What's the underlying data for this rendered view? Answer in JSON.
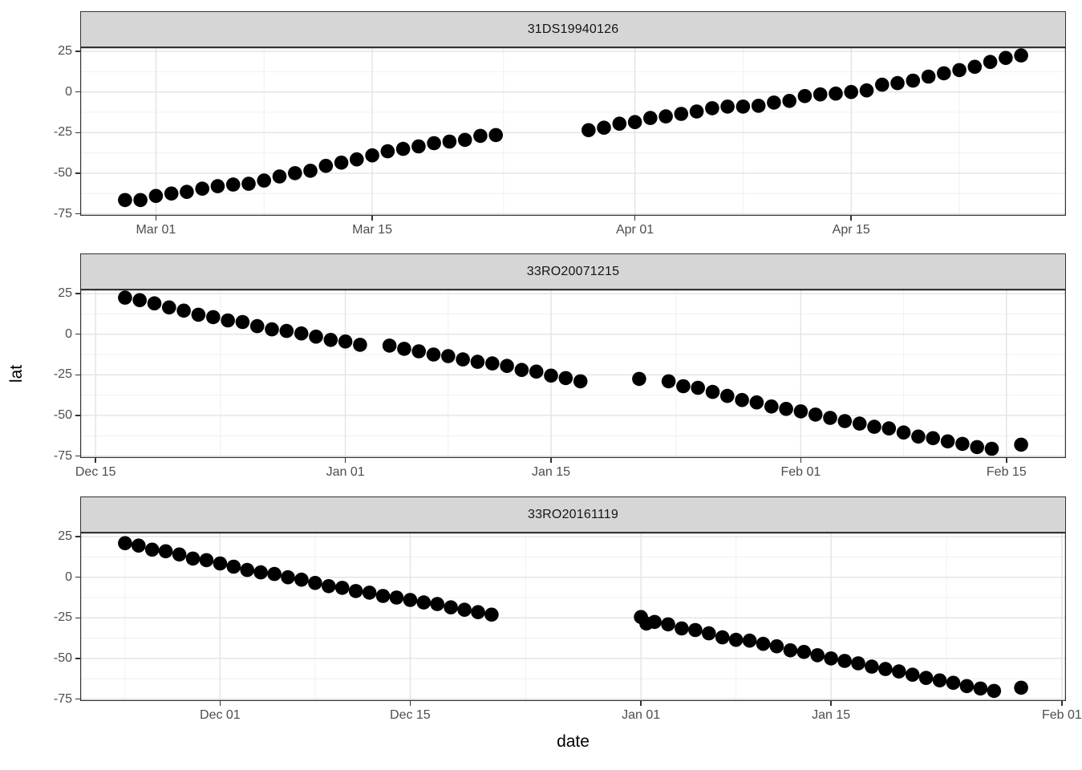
{
  "chart_data": {
    "type": "scatter",
    "xlabel": "date",
    "ylabel": "lat",
    "grid": "major-and-minor",
    "legend": "none",
    "point_color": "#000000",
    "strip_fill": "#d6d6d6",
    "ylim": [
      -76.2,
      27.5
    ],
    "y_ticks": [
      {
        "label": "25",
        "value": 25
      },
      {
        "label": "0",
        "value": 0
      },
      {
        "label": "-25",
        "value": -25
      },
      {
        "label": "-50",
        "value": -50
      },
      {
        "label": "-75",
        "value": -75
      }
    ],
    "panels": [
      {
        "title": "31DS19940126",
        "day0_date": "Feb 27",
        "x_domain_days": [
          -2.9,
          60.9
        ],
        "x_ticks": [
          {
            "label": "Mar 01",
            "day": 2
          },
          {
            "label": "Mar 15",
            "day": 16
          },
          {
            "label": "Apr 01",
            "day": 33
          },
          {
            "label": "Apr 15",
            "day": 47
          }
        ],
        "points_day_lat": [
          [
            0,
            -66.5
          ],
          [
            1,
            -66.5
          ],
          [
            2,
            -64
          ],
          [
            3,
            -62.5
          ],
          [
            4,
            -61.5
          ],
          [
            5,
            -59.5
          ],
          [
            6,
            -58
          ],
          [
            7,
            -57
          ],
          [
            8,
            -56.5
          ],
          [
            9,
            -54.5
          ],
          [
            10,
            -52
          ],
          [
            11,
            -50
          ],
          [
            12,
            -48.5
          ],
          [
            13,
            -45.5
          ],
          [
            14,
            -43.5
          ],
          [
            15,
            -41.5
          ],
          [
            16,
            -39
          ],
          [
            17,
            -36.5
          ],
          [
            18,
            -35
          ],
          [
            19,
            -33.5
          ],
          [
            20,
            -31.5
          ],
          [
            21,
            -30.5
          ],
          [
            22,
            -29.5
          ],
          [
            23,
            -27
          ],
          [
            24,
            -26.5
          ],
          [
            30,
            -23.5
          ],
          [
            31,
            -22
          ],
          [
            32,
            -19.5
          ],
          [
            33,
            -18.5
          ],
          [
            34,
            -16
          ],
          [
            35,
            -15
          ],
          [
            36,
            -13.5
          ],
          [
            37,
            -12
          ],
          [
            38,
            -10
          ],
          [
            39,
            -9
          ],
          [
            40,
            -9
          ],
          [
            41,
            -8.5
          ],
          [
            42,
            -6.5
          ],
          [
            43,
            -5.5
          ],
          [
            44,
            -2.5
          ],
          [
            45,
            -1.5
          ],
          [
            46,
            -1
          ],
          [
            47,
            0
          ],
          [
            48,
            1
          ],
          [
            49,
            4.5
          ],
          [
            50,
            5.5
          ],
          [
            51,
            7
          ],
          [
            52,
            9.5
          ],
          [
            53,
            11.5
          ],
          [
            54,
            13.5
          ],
          [
            55,
            15.5
          ],
          [
            56,
            18.5
          ],
          [
            57,
            21
          ],
          [
            58,
            22.5
          ]
        ]
      },
      {
        "title": "33RO20071215",
        "day0_date": "Dec 17",
        "x_domain_days": [
          -3.05,
          64.05
        ],
        "x_ticks": [
          {
            "label": "Dec 15",
            "day": -2
          },
          {
            "label": "Jan 01",
            "day": 15
          },
          {
            "label": "Jan 15",
            "day": 29
          },
          {
            "label": "Feb 01",
            "day": 46
          },
          {
            "label": "Feb 15",
            "day": 60
          }
        ],
        "points_day_lat": [
          [
            0,
            22.5
          ],
          [
            1,
            21
          ],
          [
            2,
            19
          ],
          [
            3,
            16.5
          ],
          [
            4,
            14.5
          ],
          [
            5,
            12
          ],
          [
            6,
            10.5
          ],
          [
            7,
            8.5
          ],
          [
            8,
            7.5
          ],
          [
            9,
            5
          ],
          [
            10,
            3
          ],
          [
            11,
            2
          ],
          [
            12,
            0.5
          ],
          [
            13,
            -1.5
          ],
          [
            14,
            -3.5
          ],
          [
            15,
            -4.5
          ],
          [
            16,
            -6.5
          ],
          [
            18,
            -7
          ],
          [
            19,
            -9
          ],
          [
            20,
            -10.5
          ],
          [
            21,
            -12.5
          ],
          [
            22,
            -13.5
          ],
          [
            23,
            -15.5
          ],
          [
            24,
            -17
          ],
          [
            25,
            -18
          ],
          [
            26,
            -19.5
          ],
          [
            27,
            -22
          ],
          [
            28,
            -23
          ],
          [
            29,
            -25.5
          ],
          [
            30,
            -27
          ],
          [
            31,
            -29
          ],
          [
            35,
            -27.5
          ],
          [
            37,
            -29
          ],
          [
            38,
            -32
          ],
          [
            39,
            -33
          ],
          [
            40,
            -35.5
          ],
          [
            41,
            -38
          ],
          [
            42,
            -40.5
          ],
          [
            43,
            -42
          ],
          [
            44,
            -44.5
          ],
          [
            45,
            -46
          ],
          [
            46,
            -47.5
          ],
          [
            47,
            -49.5
          ],
          [
            48,
            -51.5
          ],
          [
            49,
            -53.5
          ],
          [
            50,
            -55
          ],
          [
            51,
            -57
          ],
          [
            52,
            -58
          ],
          [
            53,
            -60.5
          ],
          [
            54,
            -63
          ],
          [
            55,
            -64
          ],
          [
            56,
            -66
          ],
          [
            57,
            -67.5
          ],
          [
            58,
            -69.5
          ],
          [
            59,
            -70.5
          ],
          [
            61,
            -68
          ]
        ]
      },
      {
        "title": "33RO20161119",
        "day0_date": "Nov 24",
        "x_domain_days": [
          -3.3,
          69.3
        ],
        "x_ticks": [
          {
            "label": "Dec 01",
            "day": 7
          },
          {
            "label": "Dec 15",
            "day": 21
          },
          {
            "label": "Jan 01",
            "day": 38
          },
          {
            "label": "Jan 15",
            "day": 52
          },
          {
            "label": "Feb 01",
            "day": 69
          }
        ],
        "points_day_lat": [
          [
            0,
            21
          ],
          [
            1,
            19.5
          ],
          [
            2,
            17
          ],
          [
            3,
            16
          ],
          [
            4,
            14
          ],
          [
            5,
            11.5
          ],
          [
            6,
            10.5
          ],
          [
            7,
            8.5
          ],
          [
            8,
            6.5
          ],
          [
            9,
            4.5
          ],
          [
            10,
            3
          ],
          [
            11,
            2
          ],
          [
            12,
            0
          ],
          [
            13,
            -1.5
          ],
          [
            14,
            -3.5
          ],
          [
            15,
            -5.5
          ],
          [
            16,
            -6.5
          ],
          [
            17,
            -8.5
          ],
          [
            18,
            -9.5
          ],
          [
            19,
            -11.5
          ],
          [
            20,
            -12.5
          ],
          [
            21,
            -14
          ],
          [
            22,
            -15.5
          ],
          [
            23,
            -16.5
          ],
          [
            24,
            -18.5
          ],
          [
            25,
            -20
          ],
          [
            26,
            -21.5
          ],
          [
            27,
            -23
          ],
          [
            38,
            -24.5
          ],
          [
            38.4,
            -28.5
          ],
          [
            39,
            -27.5
          ],
          [
            40,
            -29
          ],
          [
            41,
            -31.5
          ],
          [
            42,
            -32.5
          ],
          [
            43,
            -34.5
          ],
          [
            44,
            -37
          ],
          [
            45,
            -38.5
          ],
          [
            46,
            -39
          ],
          [
            47,
            -41
          ],
          [
            48,
            -42.5
          ],
          [
            49,
            -45
          ],
          [
            50,
            -46
          ],
          [
            51,
            -48
          ],
          [
            52,
            -50
          ],
          [
            53,
            -51.5
          ],
          [
            54,
            -53
          ],
          [
            55,
            -55
          ],
          [
            56,
            -56.5
          ],
          [
            57,
            -58
          ],
          [
            58,
            -60
          ],
          [
            59,
            -62
          ],
          [
            60,
            -63.5
          ],
          [
            61,
            -65
          ],
          [
            62,
            -67
          ],
          [
            63,
            -68.5
          ],
          [
            64,
            -70
          ],
          [
            66,
            -68
          ]
        ]
      }
    ]
  }
}
